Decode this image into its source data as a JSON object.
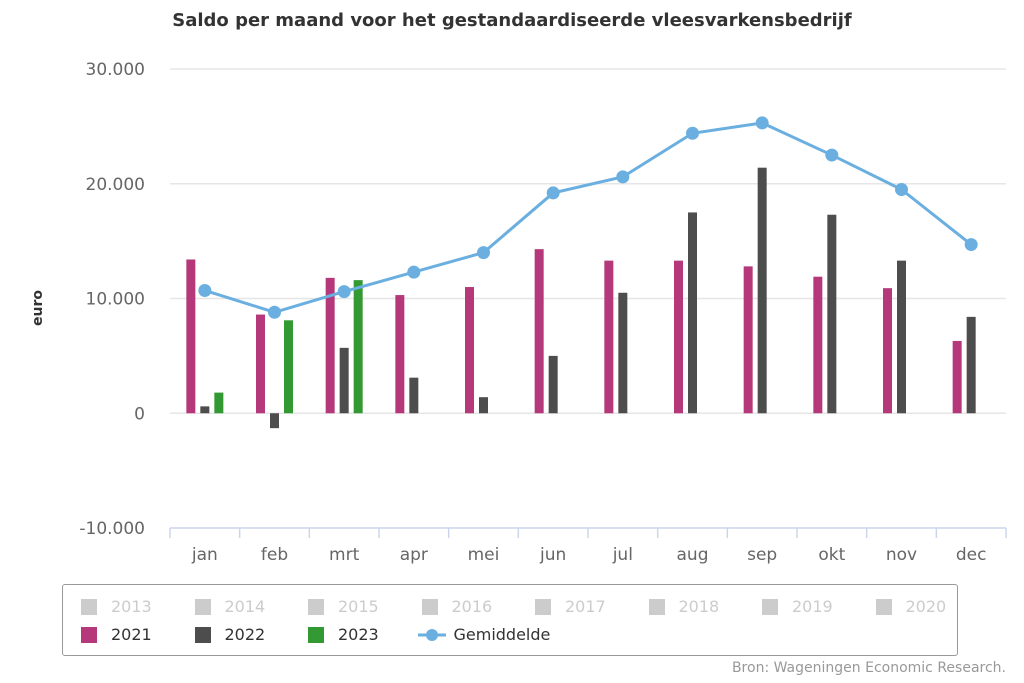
{
  "chart_data": {
    "type": "bar",
    "title": "Saldo per maand voor het gestandaardiseerde vleesvarkensbedrijf",
    "xlabel": "",
    "ylabel": "euro",
    "ylim": [
      -10000,
      30000
    ],
    "yticks": [
      {
        "value": 30000,
        "label": "30.000"
      },
      {
        "value": 20000,
        "label": "20.000"
      },
      {
        "value": 10000,
        "label": "10.000"
      },
      {
        "value": 0,
        "label": "0"
      },
      {
        "value": -10000,
        "label": "-10.000"
      }
    ],
    "grid": true,
    "categories": [
      "jan",
      "feb",
      "mrt",
      "apr",
      "mei",
      "jun",
      "jul",
      "aug",
      "sep",
      "okt",
      "nov",
      "dec"
    ],
    "series": [
      {
        "name": "2021",
        "type": "bar",
        "color": "#b5397a",
        "values": [
          13400,
          8600,
          11800,
          10300,
          11000,
          14300,
          13300,
          13300,
          12800,
          11900,
          10900,
          6300
        ]
      },
      {
        "name": "2022",
        "type": "bar",
        "color": "#4d4d4d",
        "values": [
          600,
          -1300,
          5700,
          3100,
          1400,
          5000,
          10500,
          17500,
          21400,
          17300,
          13300,
          8400
        ]
      },
      {
        "name": "2023",
        "type": "bar",
        "color": "#339933",
        "values": [
          1800,
          8100,
          11600,
          null,
          null,
          null,
          null,
          null,
          null,
          null,
          null,
          null
        ]
      },
      {
        "name": "Gemiddelde",
        "type": "line",
        "color": "#6aafe0",
        "values": [
          10700,
          8800,
          10600,
          12300,
          14000,
          19200,
          20600,
          24400,
          25300,
          22500,
          19500,
          14700
        ]
      }
    ],
    "hidden_series": [
      "2013",
      "2014",
      "2015",
      "2016",
      "2017",
      "2018",
      "2019",
      "2020"
    ],
    "legend_position": "bottom"
  },
  "legend": {
    "hidden_color": "#cccccc",
    "hidden_text_color": "#cccccc",
    "active_text_color": "#333333"
  },
  "source": "Bron: Wageningen Economic Research."
}
